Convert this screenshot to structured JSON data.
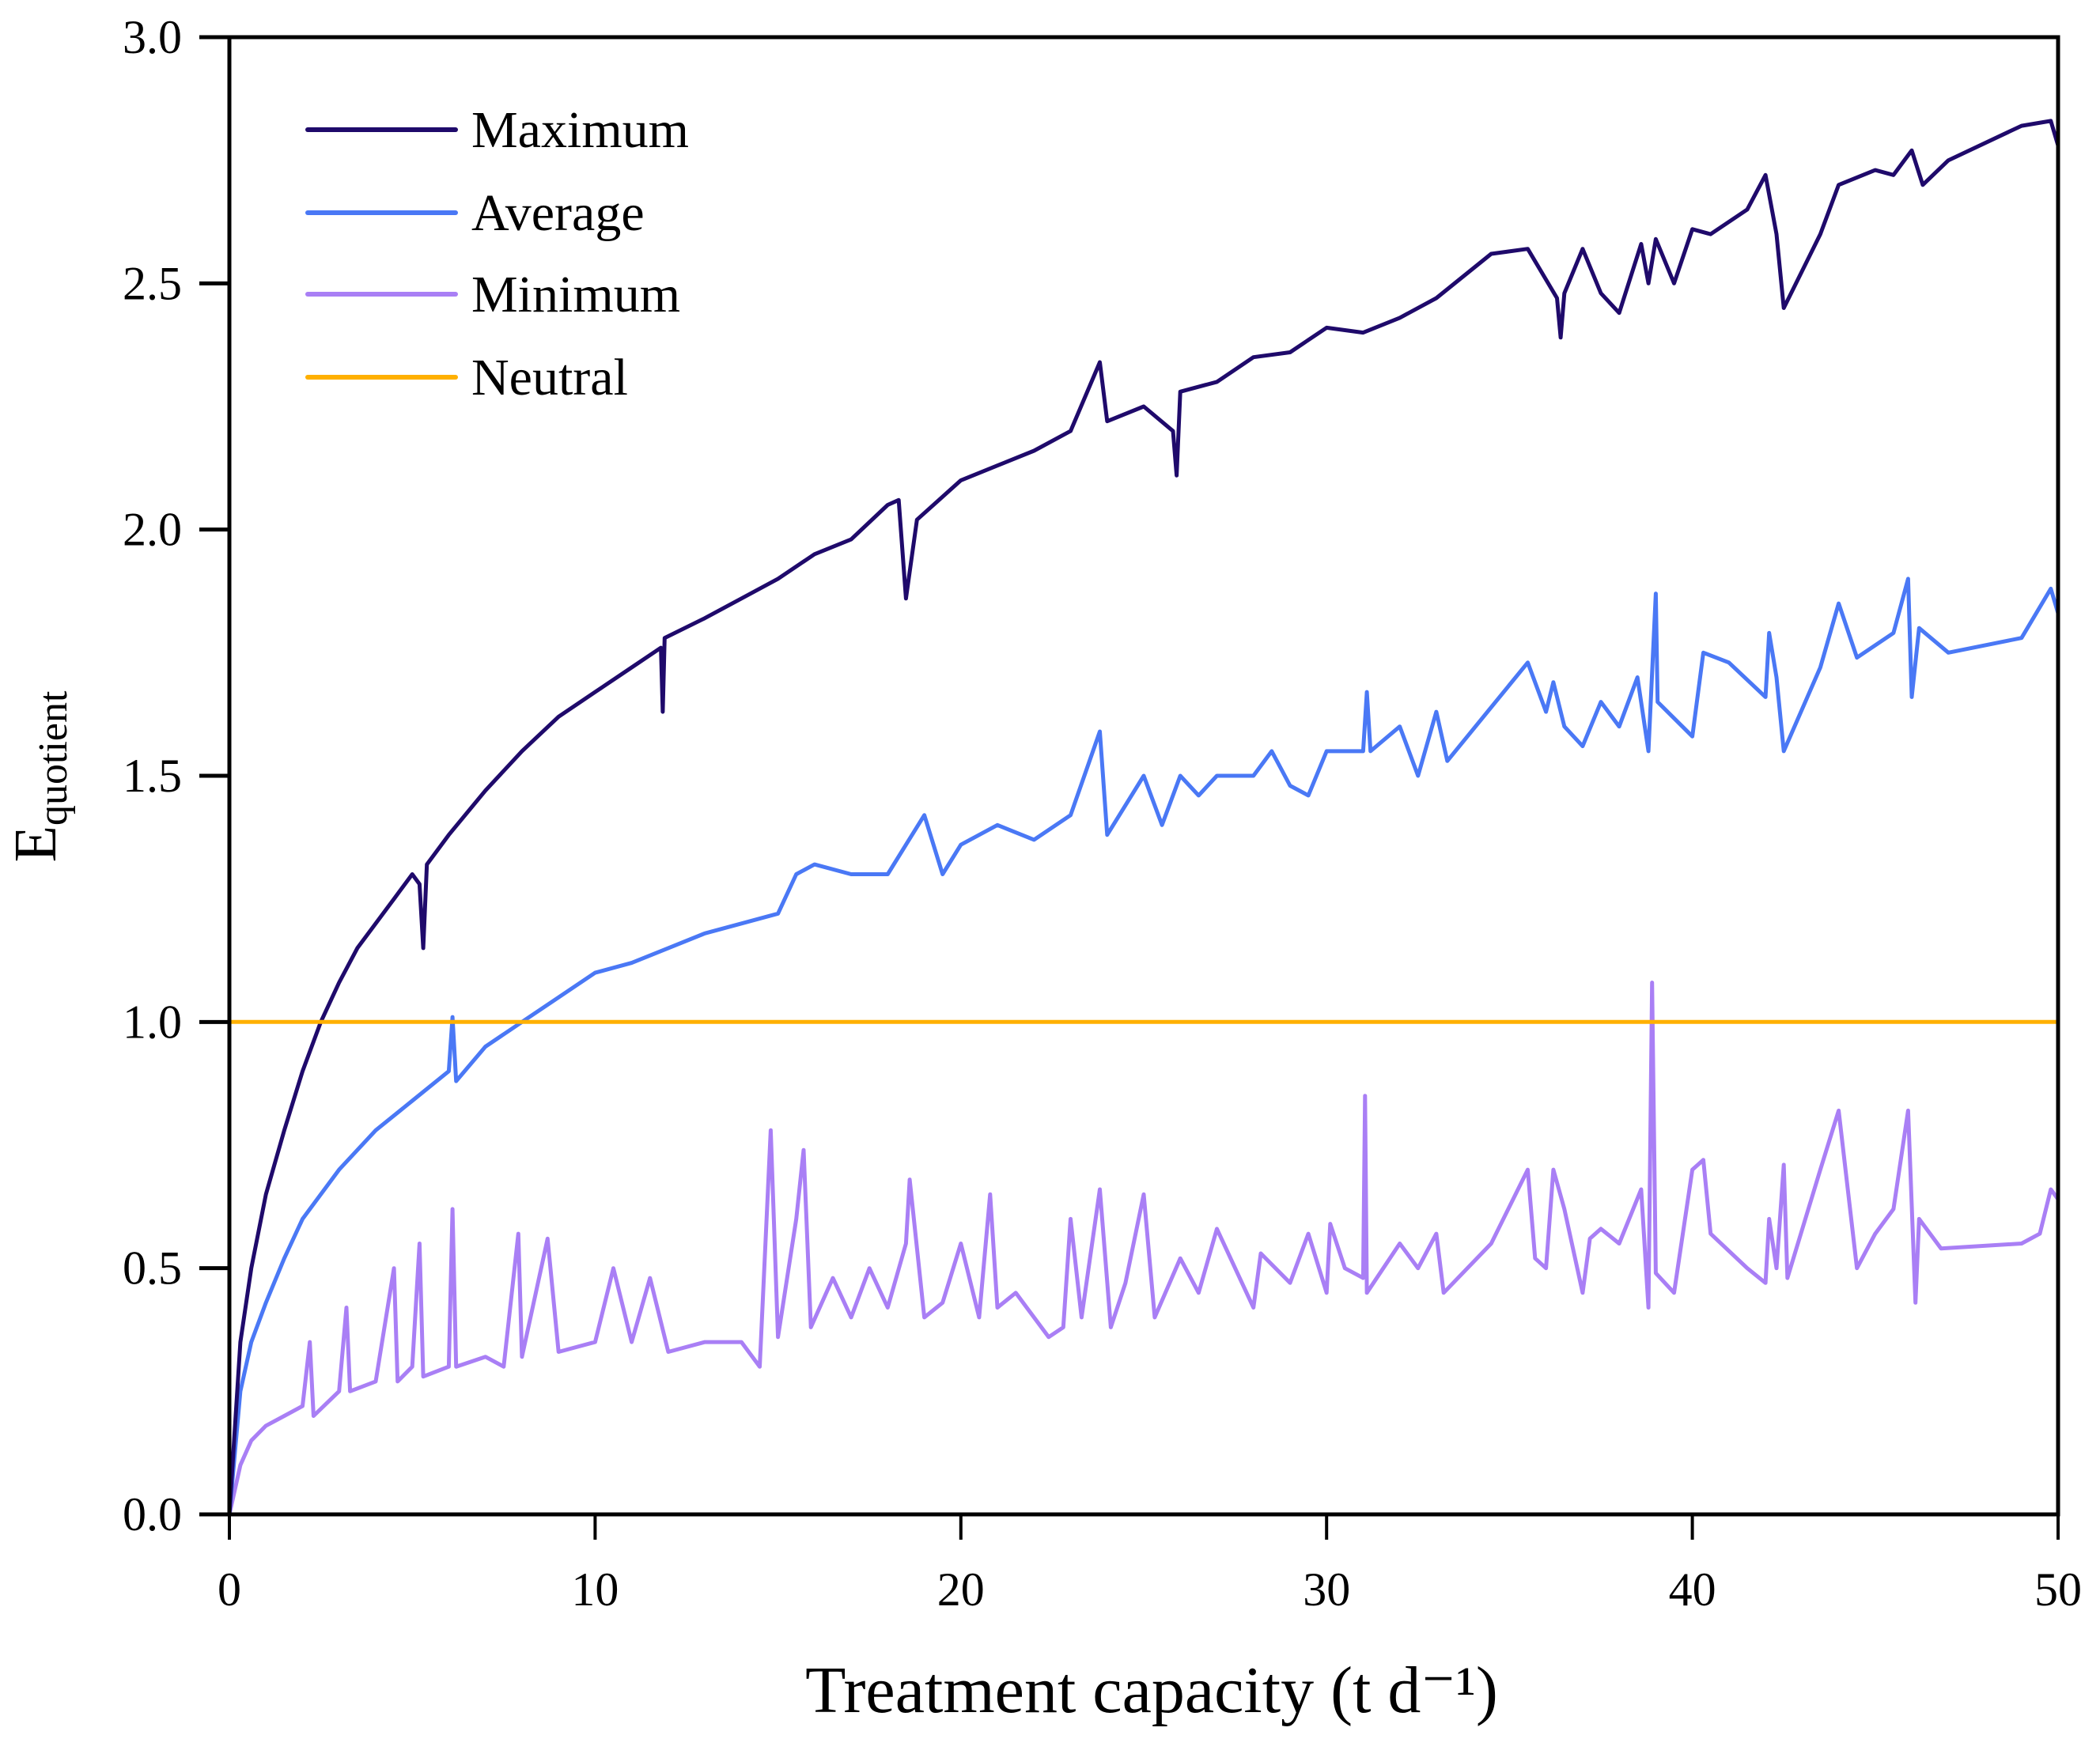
{
  "chart_data": {
    "type": "line",
    "title": "",
    "xlabel": "Treatment capacity (t d⁻¹)",
    "ylabel_main": "E",
    "ylabel_sub": "quotient",
    "xlim": [
      0,
      50
    ],
    "ylim": [
      0,
      3.0
    ],
    "xticks": [
      0,
      10,
      20,
      30,
      40,
      50
    ],
    "xtick_labels": [
      "0",
      "10",
      "20",
      "30",
      "40",
      "50"
    ],
    "yticks": [
      0,
      0.5,
      1.0,
      1.5,
      2.0,
      2.5,
      3.0
    ],
    "ytick_labels": [
      "0.0",
      "0.5",
      "1.0",
      "1.5",
      "2.0",
      "2.5",
      "3.0"
    ],
    "grid": false,
    "legend_position": "top-left",
    "series": [
      {
        "name": "Maximum",
        "color": "#1f0a6b",
        "points": [
          [
            0,
            0
          ],
          [
            0.3,
            0.35
          ],
          [
            0.6,
            0.5
          ],
          [
            1,
            0.65
          ],
          [
            1.5,
            0.78
          ],
          [
            2,
            0.9
          ],
          [
            2.5,
            1.0
          ],
          [
            3,
            1.08
          ],
          [
            3.5,
            1.15
          ],
          [
            4,
            1.2
          ],
          [
            4.5,
            1.25
          ],
          [
            5,
            1.3
          ],
          [
            5.2,
            1.28
          ],
          [
            5.3,
            1.15
          ],
          [
            5.4,
            1.32
          ],
          [
            6,
            1.38
          ],
          [
            7,
            1.47
          ],
          [
            8,
            1.55
          ],
          [
            9,
            1.62
          ],
          [
            10,
            1.67
          ],
          [
            11,
            1.72
          ],
          [
            11.8,
            1.76
          ],
          [
            11.85,
            1.63
          ],
          [
            11.9,
            1.78
          ],
          [
            13,
            1.82
          ],
          [
            14,
            1.86
          ],
          [
            15,
            1.9
          ],
          [
            16,
            1.95
          ],
          [
            17,
            1.98
          ],
          [
            18,
            2.05
          ],
          [
            18.3,
            2.06
          ],
          [
            18.5,
            1.86
          ],
          [
            18.8,
            2.02
          ],
          [
            20,
            2.1
          ],
          [
            21,
            2.13
          ],
          [
            22,
            2.16
          ],
          [
            23,
            2.2
          ],
          [
            23.8,
            2.34
          ],
          [
            24,
            2.22
          ],
          [
            25,
            2.25
          ],
          [
            25.8,
            2.2
          ],
          [
            25.9,
            2.11
          ],
          [
            26,
            2.28
          ],
          [
            27,
            2.3
          ],
          [
            28,
            2.35
          ],
          [
            29,
            2.36
          ],
          [
            30,
            2.41
          ],
          [
            31,
            2.4
          ],
          [
            32,
            2.43
          ],
          [
            33,
            2.47
          ],
          [
            34.5,
            2.56
          ],
          [
            35.5,
            2.57
          ],
          [
            36.3,
            2.47
          ],
          [
            36.4,
            2.39
          ],
          [
            36.5,
            2.48
          ],
          [
            37,
            2.57
          ],
          [
            37.5,
            2.48
          ],
          [
            38,
            2.44
          ],
          [
            38.6,
            2.58
          ],
          [
            38.8,
            2.5
          ],
          [
            39,
            2.59
          ],
          [
            39.5,
            2.5
          ],
          [
            40,
            2.61
          ],
          [
            40.5,
            2.6
          ],
          [
            41.5,
            2.65
          ],
          [
            42,
            2.72
          ],
          [
            42.3,
            2.6
          ],
          [
            42.5,
            2.45
          ],
          [
            43.5,
            2.6
          ],
          [
            44,
            2.7
          ],
          [
            45,
            2.73
          ],
          [
            45.5,
            2.72
          ],
          [
            46,
            2.77
          ],
          [
            46.3,
            2.7
          ],
          [
            47,
            2.75
          ],
          [
            49,
            2.82
          ],
          [
            49.8,
            2.83
          ],
          [
            50,
            2.78
          ]
        ]
      },
      {
        "name": "Average",
        "color": "#4a78f5",
        "points": [
          [
            0,
            0
          ],
          [
            0.3,
            0.25
          ],
          [
            0.6,
            0.35
          ],
          [
            1,
            0.43
          ],
          [
            1.5,
            0.52
          ],
          [
            2,
            0.6
          ],
          [
            3,
            0.7
          ],
          [
            4,
            0.78
          ],
          [
            5,
            0.84
          ],
          [
            6,
            0.9
          ],
          [
            6.1,
            1.01
          ],
          [
            6.2,
            0.88
          ],
          [
            7,
            0.95
          ],
          [
            8,
            1.0
          ],
          [
            9,
            1.05
          ],
          [
            10,
            1.1
          ],
          [
            11,
            1.12
          ],
          [
            12,
            1.15
          ],
          [
            13,
            1.18
          ],
          [
            14,
            1.2
          ],
          [
            15,
            1.22
          ],
          [
            15.5,
            1.3
          ],
          [
            16,
            1.32
          ],
          [
            17,
            1.3
          ],
          [
            18,
            1.3
          ],
          [
            18.5,
            1.36
          ],
          [
            19,
            1.42
          ],
          [
            19.5,
            1.3
          ],
          [
            20,
            1.36
          ],
          [
            21,
            1.4
          ],
          [
            22,
            1.37
          ],
          [
            23,
            1.42
          ],
          [
            23.8,
            1.59
          ],
          [
            24,
            1.38
          ],
          [
            25,
            1.5
          ],
          [
            25.5,
            1.4
          ],
          [
            26,
            1.5
          ],
          [
            26.5,
            1.46
          ],
          [
            27,
            1.5
          ],
          [
            28,
            1.5
          ],
          [
            28.5,
            1.55
          ],
          [
            29,
            1.48
          ],
          [
            29.5,
            1.46
          ],
          [
            30,
            1.55
          ],
          [
            31,
            1.55
          ],
          [
            31.1,
            1.67
          ],
          [
            31.2,
            1.55
          ],
          [
            32,
            1.6
          ],
          [
            32.5,
            1.5
          ],
          [
            33,
            1.63
          ],
          [
            33.3,
            1.53
          ],
          [
            35.5,
            1.73
          ],
          [
            36,
            1.63
          ],
          [
            36.2,
            1.69
          ],
          [
            36.5,
            1.6
          ],
          [
            37,
            1.56
          ],
          [
            37.5,
            1.65
          ],
          [
            38,
            1.6
          ],
          [
            38.5,
            1.7
          ],
          [
            38.8,
            1.55
          ],
          [
            39,
            1.87
          ],
          [
            39.05,
            1.65
          ],
          [
            40,
            1.58
          ],
          [
            40.3,
            1.75
          ],
          [
            41,
            1.73
          ],
          [
            42,
            1.66
          ],
          [
            42.1,
            1.79
          ],
          [
            42.3,
            1.7
          ],
          [
            42.5,
            1.55
          ],
          [
            43.5,
            1.72
          ],
          [
            44,
            1.85
          ],
          [
            44.5,
            1.74
          ],
          [
            45.5,
            1.79
          ],
          [
            45.9,
            1.9
          ],
          [
            46,
            1.66
          ],
          [
            46.2,
            1.8
          ],
          [
            47,
            1.75
          ],
          [
            49,
            1.78
          ],
          [
            49.8,
            1.88
          ],
          [
            50,
            1.83
          ]
        ]
      },
      {
        "name": "Minimum",
        "color": "#a97ff5",
        "points": [
          [
            0,
            0
          ],
          [
            0.3,
            0.1
          ],
          [
            0.6,
            0.15
          ],
          [
            1,
            0.18
          ],
          [
            1.5,
            0.2
          ],
          [
            2,
            0.22
          ],
          [
            2.2,
            0.35
          ],
          [
            2.3,
            0.2
          ],
          [
            3,
            0.25
          ],
          [
            3.2,
            0.42
          ],
          [
            3.3,
            0.25
          ],
          [
            4,
            0.27
          ],
          [
            4.5,
            0.5
          ],
          [
            4.6,
            0.27
          ],
          [
            5,
            0.3
          ],
          [
            5.2,
            0.55
          ],
          [
            5.3,
            0.28
          ],
          [
            6,
            0.3
          ],
          [
            6.1,
            0.62
          ],
          [
            6.2,
            0.3
          ],
          [
            7,
            0.32
          ],
          [
            7.5,
            0.3
          ],
          [
            7.9,
            0.57
          ],
          [
            8,
            0.32
          ],
          [
            8.7,
            0.56
          ],
          [
            9,
            0.33
          ],
          [
            10,
            0.35
          ],
          [
            10.5,
            0.5
          ],
          [
            11,
            0.35
          ],
          [
            11.5,
            0.48
          ],
          [
            12,
            0.33
          ],
          [
            13,
            0.35
          ],
          [
            14,
            0.35
          ],
          [
            14.5,
            0.3
          ],
          [
            14.8,
            0.78
          ],
          [
            15,
            0.36
          ],
          [
            15.5,
            0.6
          ],
          [
            15.7,
            0.74
          ],
          [
            15.9,
            0.38
          ],
          [
            16.5,
            0.48
          ],
          [
            17,
            0.4
          ],
          [
            17.5,
            0.5
          ],
          [
            18,
            0.42
          ],
          [
            18.5,
            0.55
          ],
          [
            18.6,
            0.68
          ],
          [
            19,
            0.4
          ],
          [
            19.5,
            0.43
          ],
          [
            20,
            0.55
          ],
          [
            20.5,
            0.4
          ],
          [
            20.8,
            0.65
          ],
          [
            21,
            0.42
          ],
          [
            21.5,
            0.45
          ],
          [
            22,
            0.4
          ],
          [
            22.4,
            0.36
          ],
          [
            22.8,
            0.38
          ],
          [
            23,
            0.6
          ],
          [
            23.3,
            0.4
          ],
          [
            23.8,
            0.66
          ],
          [
            24.1,
            0.38
          ],
          [
            24.5,
            0.47
          ],
          [
            25,
            0.65
          ],
          [
            25.3,
            0.4
          ],
          [
            26,
            0.52
          ],
          [
            26.5,
            0.45
          ],
          [
            27,
            0.58
          ],
          [
            28,
            0.42
          ],
          [
            28.2,
            0.53
          ],
          [
            29,
            0.47
          ],
          [
            29.5,
            0.57
          ],
          [
            30,
            0.45
          ],
          [
            30.1,
            0.59
          ],
          [
            30.5,
            0.5
          ],
          [
            31,
            0.48
          ],
          [
            31.05,
            0.85
          ],
          [
            31.1,
            0.45
          ],
          [
            32,
            0.55
          ],
          [
            32.5,
            0.5
          ],
          [
            33,
            0.57
          ],
          [
            33.2,
            0.45
          ],
          [
            34.5,
            0.55
          ],
          [
            35.5,
            0.7
          ],
          [
            35.7,
            0.52
          ],
          [
            36,
            0.5
          ],
          [
            36.2,
            0.7
          ],
          [
            36.5,
            0.62
          ],
          [
            37,
            0.45
          ],
          [
            37.2,
            0.56
          ],
          [
            37.5,
            0.58
          ],
          [
            38,
            0.55
          ],
          [
            38.6,
            0.66
          ],
          [
            38.8,
            0.42
          ],
          [
            38.9,
            1.08
          ],
          [
            39,
            0.49
          ],
          [
            39.5,
            0.45
          ],
          [
            40,
            0.7
          ],
          [
            40.3,
            0.72
          ],
          [
            40.5,
            0.57
          ],
          [
            41.5,
            0.5
          ],
          [
            42,
            0.47
          ],
          [
            42.1,
            0.6
          ],
          [
            42.3,
            0.5
          ],
          [
            42.5,
            0.71
          ],
          [
            42.6,
            0.48
          ],
          [
            43.5,
            0.7
          ],
          [
            44,
            0.82
          ],
          [
            44.5,
            0.5
          ],
          [
            45,
            0.57
          ],
          [
            45.5,
            0.62
          ],
          [
            45.9,
            0.82
          ],
          [
            46.1,
            0.43
          ],
          [
            46.2,
            0.6
          ],
          [
            46.8,
            0.54
          ],
          [
            49,
            0.55
          ],
          [
            49.5,
            0.57
          ],
          [
            49.8,
            0.66
          ],
          [
            50,
            0.64
          ]
        ]
      },
      {
        "name": "Neutral",
        "color": "#ffb000",
        "points": [
          [
            0,
            1.0
          ],
          [
            50,
            1.0
          ]
        ]
      }
    ]
  }
}
